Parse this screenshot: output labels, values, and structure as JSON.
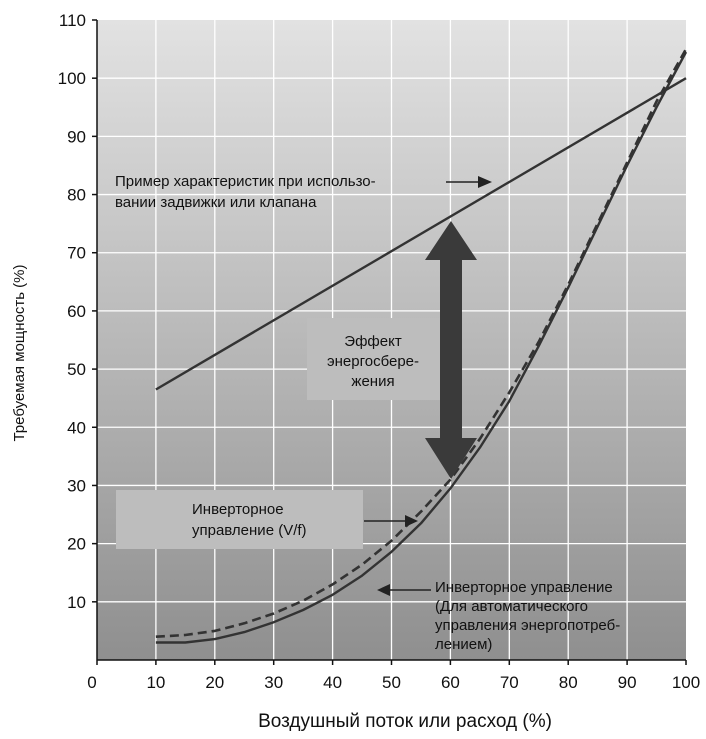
{
  "chart_data": {
    "type": "line",
    "xlabel": "Воздушный поток или расход (%)",
    "ylabel": "Требуемая мощность (%)",
    "xlim": [
      0,
      100
    ],
    "ylim": [
      0,
      110
    ],
    "x_ticks": [
      "0",
      "10",
      "20",
      "30",
      "40",
      "50",
      "60",
      "70",
      "80",
      "90",
      "100"
    ],
    "y_ticks": [
      "10",
      "20",
      "30",
      "40",
      "50",
      "60",
      "70",
      "80",
      "90",
      "100",
      "110"
    ],
    "grid": true,
    "series": [
      {
        "style": "solid-straight",
        "x": [
          10,
          100
        ],
        "y": [
          46.5,
          100
        ]
      },
      {
        "style": "dashed",
        "x": [
          10,
          15,
          20,
          25,
          30,
          35,
          40,
          45,
          50,
          55,
          60,
          65,
          70,
          75,
          80,
          85,
          90,
          95,
          100
        ],
        "y": [
          4,
          4.3,
          5,
          6.3,
          8,
          10.2,
          13,
          16.4,
          20.5,
          25.5,
          31,
          38,
          46,
          54.7,
          64.5,
          75,
          85.5,
          96,
          105
        ]
      },
      {
        "style": "solid-curve",
        "x": [
          10,
          15,
          20,
          25,
          30,
          35,
          40,
          45,
          50,
          55,
          60,
          65,
          70,
          75,
          80,
          85,
          90,
          95,
          100
        ],
        "y": [
          3,
          3,
          3.6,
          4.8,
          6.5,
          8.6,
          11.2,
          14.5,
          18.6,
          23.5,
          29.5,
          36.5,
          44.5,
          54,
          64,
          74.5,
          85,
          95,
          104.5
        ]
      }
    ],
    "annotations": {
      "valve": [
        "Пример характеристик при использо-",
        "вании задвижки или клапана"
      ],
      "saving": [
        "Эффект",
        "энергосбере-",
        "жения"
      ],
      "vf": [
        "Инверторное",
        "управление (V/f)"
      ],
      "auto": [
        "Инверторное управление",
        "(Для автоматического",
        "управления энергопотреб-",
        "лением)"
      ]
    },
    "colors": {
      "plot_top": "#e2e2e2",
      "plot_bottom": "#8f8f8f",
      "grid": "#ffffff",
      "line": "#333333",
      "arrow": "#3a3a3a",
      "label_box": "#bdbdbd"
    }
  }
}
